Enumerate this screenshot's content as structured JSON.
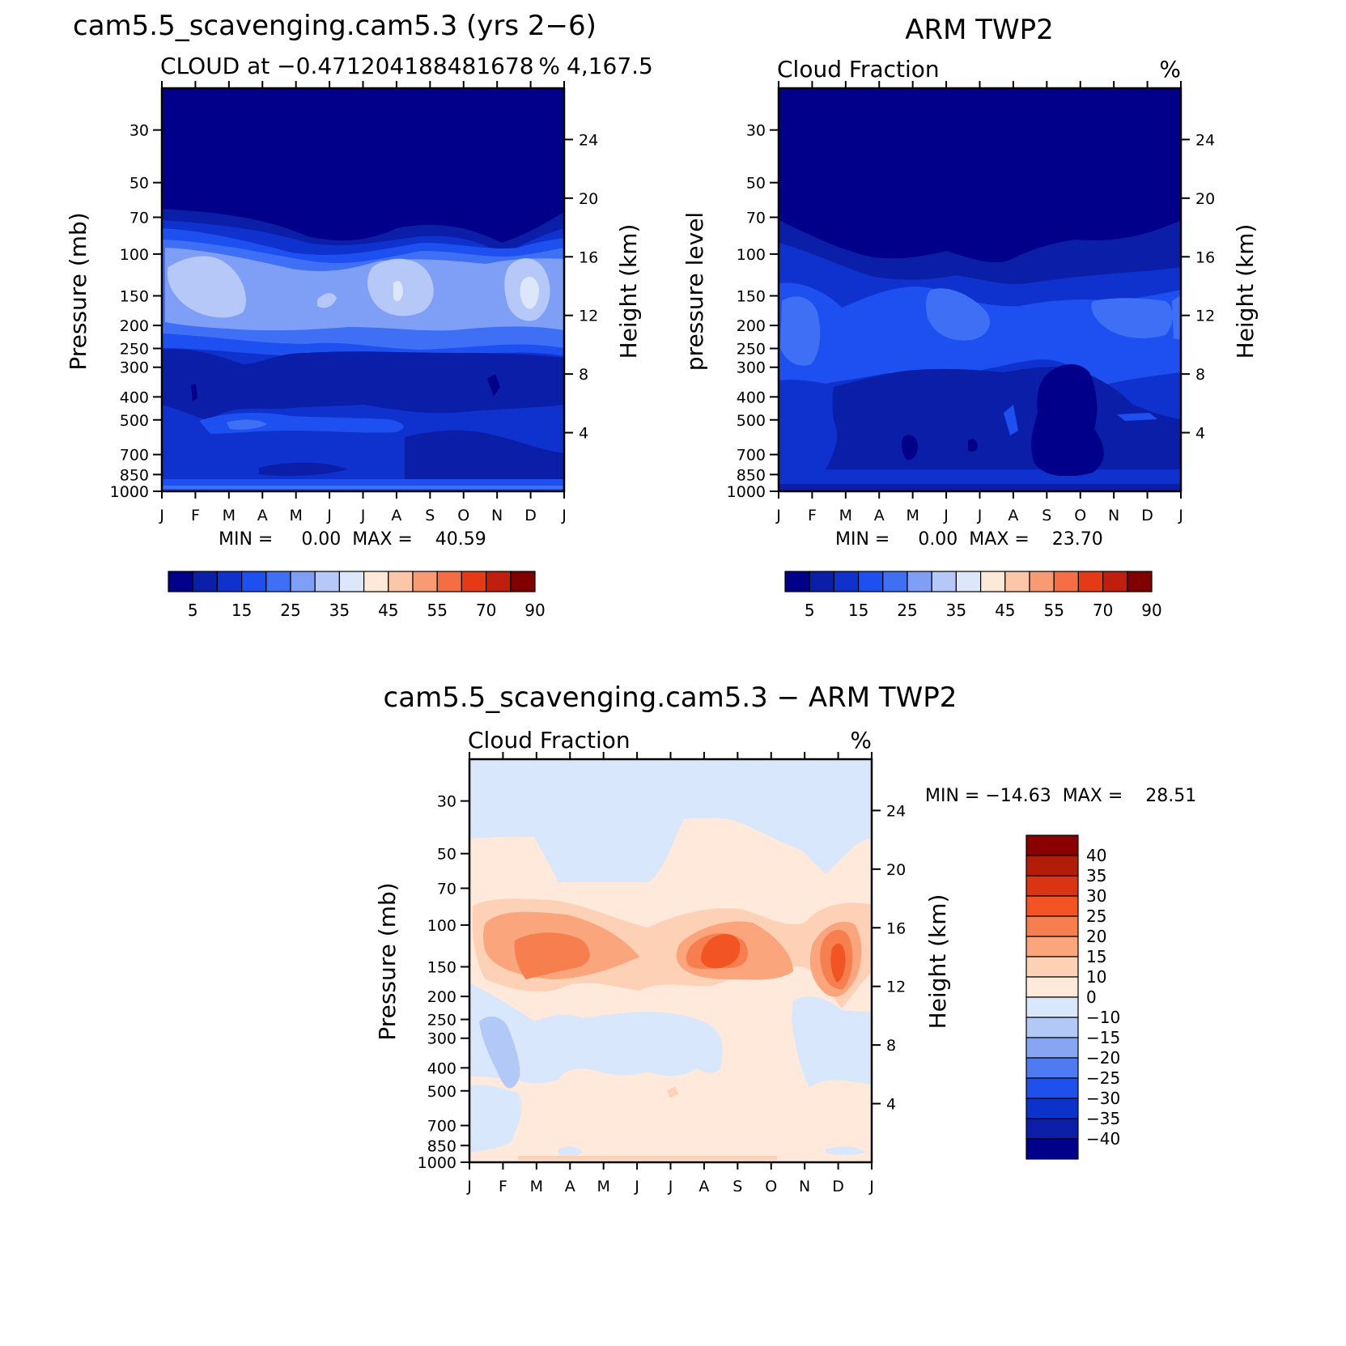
{
  "months": [
    "J",
    "F",
    "M",
    "A",
    "M",
    "J",
    "J",
    "A",
    "S",
    "O",
    "N",
    "D",
    "J"
  ],
  "pressure_ticks": [
    "30",
    "50",
    "70",
    "100",
    "150",
    "200",
    "250",
    "300",
    "400",
    "500",
    "700",
    "850",
    "1000"
  ],
  "height_ticks": [
    "24",
    "20",
    "16",
    "12",
    "8",
    "4"
  ],
  "panels": [
    {
      "id": "model",
      "title": "cam5.5_scavenging.cam5.3 (yrs 2−6)",
      "left_string": "CLOUD at −0.471204188481678",
      "center_string": "4,167.5",
      "right_string": "%",
      "ylabel_left": "Pressure (mb)",
      "ylabel_right": "Height (km)",
      "stats": "MIN =     0.00  MAX =    40.59"
    },
    {
      "id": "obs",
      "title": "ARM TWP2",
      "left_string": "Cloud Fraction",
      "right_string": "%",
      "ylabel_left": "pressure level",
      "ylabel_right": "Height (km)",
      "stats": "MIN =     0.00  MAX =    23.70"
    },
    {
      "id": "diff",
      "title": "cam5.5_scavenging.cam5.3 − ARM TWP2",
      "left_string": "Cloud Fraction",
      "right_string": "%",
      "ylabel_left": "Pressure (mb)",
      "ylabel_right": "Height (km)",
      "stats": "MIN = −14.63  MAX =    28.51"
    }
  ],
  "colorbars": {
    "abs": {
      "labels": [
        "5",
        "15",
        "25",
        "35",
        "45",
        "55",
        "70",
        "90"
      ],
      "colors": [
        "#00008a",
        "#0a1ea8",
        "#0f32cf",
        "#1e4ff0",
        "#3e6ff5",
        "#7f9ef5",
        "#b5c8f7",
        "#dce8f9",
        "#fde9d7",
        "#fcc7a8",
        "#f99b72",
        "#f46d43",
        "#e63a17",
        "#bf1f0c",
        "#800000"
      ]
    },
    "diff": {
      "labels": [
        "40",
        "35",
        "30",
        "25",
        "20",
        "15",
        "10",
        "0",
        "−10",
        "−15",
        "−20",
        "−25",
        "−30",
        "−35",
        "−40"
      ],
      "colors": [
        "#8b0000",
        "#b31d08",
        "#db3413",
        "#f35424",
        "#f77f4f",
        "#faa57b",
        "#fdd1b6",
        "#fee9da",
        "#d8e7fb",
        "#b2c8f6",
        "#86a6f3",
        "#4f7bf2",
        "#2050ec",
        "#0b33cc",
        "#0a1ea8",
        "#00008b"
      ]
    }
  },
  "chart_data": [
    {
      "type": "heatmap",
      "title": "cam5.5_scavenging.cam5.3 (yrs 2−6)",
      "variable": "CLOUD at −0.4712041884816784,167.5",
      "units": "%",
      "x": [
        "J",
        "F",
        "M",
        "A",
        "M",
        "J",
        "J",
        "A",
        "S",
        "O",
        "N",
        "D",
        "J"
      ],
      "y": [
        30,
        50,
        70,
        100,
        150,
        200,
        250,
        300,
        400,
        500,
        700,
        850,
        1000
      ],
      "y_scale": "log (pressure, inverted)",
      "ylabel": "Pressure (mb)",
      "ylabel_right": "Height (km)",
      "z_approx": [
        [
          2,
          2,
          2,
          2,
          2,
          2,
          2,
          2,
          2,
          2,
          2,
          2,
          2
        ],
        [
          2,
          2,
          2,
          2,
          2,
          2,
          2,
          2,
          2,
          2,
          2,
          2,
          2
        ],
        [
          6,
          4,
          3,
          3,
          2,
          2,
          2,
          3,
          3,
          3,
          3,
          5,
          7
        ],
        [
          24,
          24,
          18,
          14,
          9,
          8,
          10,
          19,
          19,
          15,
          13,
          26,
          26
        ],
        [
          34,
          36,
          34,
          28,
          26,
          30,
          28,
          36,
          34,
          24,
          30,
          38,
          38
        ],
        [
          28,
          26,
          30,
          24,
          26,
          28,
          28,
          28,
          26,
          20,
          24,
          32,
          30
        ],
        [
          18,
          16,
          14,
          12,
          12,
          12,
          14,
          14,
          14,
          12,
          12,
          16,
          16
        ],
        [
          10,
          8,
          7,
          6,
          5,
          5,
          5,
          6,
          6,
          6,
          6,
          7,
          8
        ],
        [
          9,
          6,
          9,
          9,
          5,
          5,
          5,
          5,
          5,
          5,
          4,
          6,
          8
        ],
        [
          14,
          14,
          18,
          16,
          16,
          14,
          14,
          16,
          12,
          10,
          12,
          14,
          14
        ],
        [
          12,
          12,
          12,
          10,
          9,
          8,
          8,
          8,
          6,
          6,
          6,
          8,
          12
        ],
        [
          12,
          12,
          10,
          10,
          8,
          8,
          8,
          8,
          8,
          8,
          8,
          10,
          12
        ],
        [
          18,
          18,
          18,
          18,
          18,
          18,
          18,
          18,
          18,
          18,
          18,
          18,
          18
        ]
      ],
      "min": 0.0,
      "max": 40.59,
      "levels": [
        5,
        10,
        15,
        20,
        25,
        30,
        35,
        40,
        45,
        50,
        55,
        60,
        70,
        80,
        90
      ]
    },
    {
      "type": "heatmap",
      "title": "ARM TWP2",
      "variable": "Cloud Fraction",
      "units": "%",
      "x": [
        "J",
        "F",
        "M",
        "A",
        "M",
        "J",
        "J",
        "A",
        "S",
        "O",
        "N",
        "D",
        "J"
      ],
      "y": [
        30,
        50,
        70,
        100,
        150,
        200,
        250,
        300,
        400,
        500,
        700,
        850,
        1000
      ],
      "y_scale": "log (pressure, inverted)",
      "ylabel": "pressure level",
      "ylabel_right": "Height (km)",
      "z_approx": [
        [
          2,
          2,
          2,
          2,
          2,
          2,
          2,
          2,
          2,
          2,
          2,
          2,
          2
        ],
        [
          2,
          2,
          2,
          2,
          2,
          2,
          2,
          2,
          2,
          2,
          2,
          2,
          2
        ],
        [
          4,
          3,
          2,
          2,
          2,
          2,
          2,
          2,
          2,
          2,
          2,
          3,
          4
        ],
        [
          9,
          7,
          6,
          6,
          6,
          5,
          5,
          5,
          5,
          5,
          5,
          6,
          8
        ],
        [
          13,
          11,
          11,
          11,
          10,
          11,
          11,
          11,
          9,
          9,
          10,
          12,
          13
        ],
        [
          20,
          16,
          14,
          14,
          14,
          17,
          18,
          18,
          15,
          15,
          14,
          16,
          18
        ],
        [
          20,
          15,
          14,
          14,
          14,
          15,
          16,
          15,
          14,
          12,
          13,
          14,
          16
        ],
        [
          18,
          13,
          12,
          12,
          12,
          10,
          10,
          10,
          10,
          8,
          10,
          12,
          16
        ],
        [
          14,
          12,
          13,
          9,
          8,
          8,
          8,
          8,
          7,
          4,
          8,
          10,
          14
        ],
        [
          12,
          11,
          12,
          9,
          8,
          10,
          8,
          10,
          8,
          4,
          9,
          10,
          12
        ],
        [
          11,
          10,
          10,
          9,
          4,
          8,
          5,
          8,
          8,
          4,
          8,
          10,
          12
        ],
        [
          10,
          10,
          9,
          9,
          9,
          9,
          9,
          9,
          9,
          9,
          9,
          9,
          10
        ],
        [
          12,
          12,
          12,
          12,
          12,
          12,
          12,
          12,
          12,
          12,
          12,
          12,
          12
        ]
      ],
      "min": 0.0,
      "max": 23.7,
      "levels": [
        5,
        10,
        15,
        20,
        25,
        30,
        35,
        40,
        45,
        50,
        55,
        60,
        70,
        80,
        90
      ]
    },
    {
      "type": "heatmap",
      "title": "cam5.5_scavenging.cam5.3 − ARM TWP2",
      "variable": "Cloud Fraction",
      "units": "%",
      "x": [
        "J",
        "F",
        "M",
        "A",
        "M",
        "J",
        "J",
        "A",
        "S",
        "O",
        "N",
        "D",
        "J"
      ],
      "y": [
        30,
        50,
        70,
        100,
        150,
        200,
        250,
        300,
        400,
        500,
        700,
        850,
        1000
      ],
      "y_scale": "log (pressure, inverted)",
      "ylabel": "Pressure (mb)",
      "ylabel_right": "Height (km)",
      "z_approx": [
        [
          -2,
          -2,
          -2,
          -2,
          -2,
          -2,
          -2,
          -2,
          -2,
          -2,
          -2,
          -2,
          -2
        ],
        [
          -2,
          -2,
          -2,
          -2,
          -2,
          -2,
          -2,
          -2,
          -2,
          -2,
          -2,
          -2,
          -2
        ],
        [
          2,
          2,
          1,
          -1,
          -1,
          -1,
          1,
          1,
          1,
          1,
          -1,
          1,
          2
        ],
        [
          12,
          12,
          10,
          6,
          4,
          3,
          4,
          10,
          12,
          8,
          6,
          14,
          14
        ],
        [
          14,
          18,
          22,
          18,
          12,
          12,
          16,
          24,
          26,
          12,
          18,
          26,
          26
        ],
        [
          8,
          10,
          14,
          10,
          8,
          6,
          10,
          12,
          12,
          6,
          10,
          20,
          14
        ],
        [
          -2,
          -4,
          2,
          1,
          1,
          1,
          2,
          2,
          1,
          1,
          -2,
          2,
          2
        ],
        [
          -3,
          -8,
          -2,
          -2,
          -2,
          -2,
          -2,
          -1,
          1,
          1,
          -2,
          -2,
          -2
        ],
        [
          -6,
          -12,
          -4,
          -4,
          -4,
          -4,
          -2,
          -2,
          -2,
          2,
          -2,
          -4,
          -4
        ],
        [
          -2,
          -4,
          1,
          2,
          2,
          1,
          2,
          2,
          1,
          2,
          -2,
          -2,
          -2
        ],
        [
          -2,
          -2,
          2,
          2,
          2,
          2,
          2,
          2,
          2,
          2,
          2,
          2,
          2
        ],
        [
          -2,
          -2,
          2,
          2,
          2,
          2,
          2,
          2,
          2,
          2,
          2,
          2,
          2
        ],
        [
          6,
          6,
          6,
          6,
          6,
          6,
          6,
          6,
          6,
          6,
          6,
          6,
          6
        ]
      ],
      "min": -14.63,
      "max": 28.51,
      "levels": [
        -40,
        -35,
        -30,
        -25,
        -20,
        -15,
        -10,
        0,
        10,
        15,
        20,
        25,
        30,
        35,
        40
      ]
    }
  ]
}
